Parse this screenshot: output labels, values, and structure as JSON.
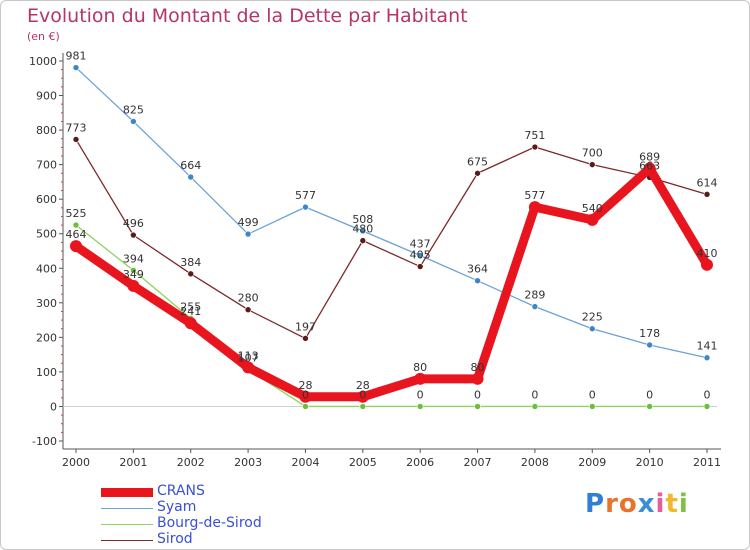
{
  "header": {
    "title": "Evolution du Montant de la Dette par Habitant",
    "subtitle": "(en €)"
  },
  "logo": {
    "text": "Proxiti",
    "letter_colors": [
      "#2f7fd6",
      "#e8732c",
      "#e8732c",
      "#3b8fd8",
      "#e85c9a",
      "#f0b82e",
      "#7dc142"
    ]
  },
  "chart_data": {
    "type": "line",
    "title": "Evolution du Montant de la Dette par Habitant",
    "ylabel": "(en €)",
    "xlabel": "",
    "x": [
      "2000",
      "2001",
      "2002",
      "2003",
      "2004",
      "2005",
      "2006",
      "2007",
      "2008",
      "2009",
      "2010",
      "2011"
    ],
    "ylim": [
      -100,
      1000
    ],
    "yticks": [
      "-100",
      "0",
      "100",
      "200",
      "300",
      "400",
      "500",
      "600",
      "700",
      "800",
      "900",
      "1000"
    ],
    "grid": false,
    "legend_position": "bottom-left",
    "series": [
      {
        "name": "Syam",
        "color": "#6ba3d6",
        "marker": "#3f86c8",
        "values": [
          981,
          825,
          664,
          499,
          577,
          508,
          437,
          364,
          289,
          225,
          178,
          141
        ],
        "labels": [
          "981",
          "825",
          "664",
          "499",
          "577",
          "508",
          "437",
          "364",
          "289",
          "225",
          "178",
          "141"
        ]
      },
      {
        "name": "Sirod",
        "color": "#7a2a2a",
        "marker": "#5a1a1a",
        "values": [
          773,
          496,
          384,
          280,
          197,
          480,
          405,
          675,
          751,
          700,
          663,
          614
        ],
        "labels": [
          "773",
          "496",
          "384",
          "280",
          "197",
          "480",
          "405",
          "675",
          "751",
          "700",
          "663",
          "614"
        ]
      },
      {
        "name": "Bourg-de-Sirod",
        "color": "#8fd35a",
        "marker": "#6cbf3a",
        "values": [
          525,
          394,
          255,
          107,
          0,
          0,
          0,
          0,
          0,
          0,
          0,
          0
        ],
        "labels": [
          "525",
          "394",
          "255",
          "107",
          "0",
          "0",
          "0",
          "0",
          "0",
          "0",
          "0",
          "0"
        ]
      },
      {
        "name": "CRANS",
        "color": "#e8141e",
        "marker": "#e8141e",
        "values": [
          464,
          349,
          241,
          113,
          28,
          28,
          80,
          80,
          577,
          540,
          689,
          410
        ],
        "labels": [
          "464",
          "349",
          "241",
          "113",
          "28",
          "28",
          "80",
          "80",
          "577",
          "540",
          "689",
          "410"
        ]
      }
    ],
    "legend_order": [
      "CRANS",
      "Syam",
      "Bourg-de-Sirod",
      "Sirod"
    ]
  }
}
